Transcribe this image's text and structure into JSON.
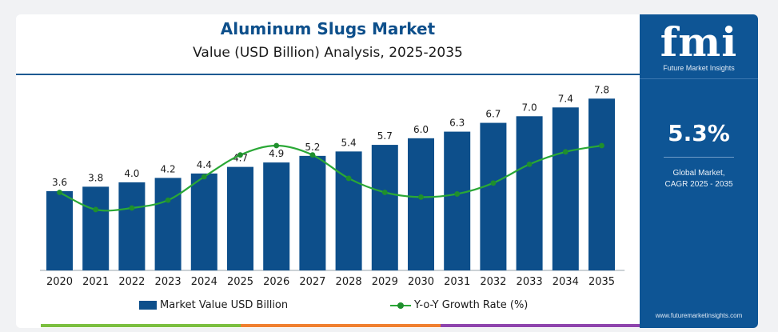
{
  "title": "Aluminum Slugs Market",
  "subtitle": "Value (USD Billion) Analysis, 2025-2035",
  "brand": {
    "logo": "fmi",
    "name": "Future Market Insights",
    "url": "www.futuremarketinsights.com",
    "color": "#0e5595"
  },
  "kpi": {
    "value": "5.3%",
    "label_line1": "Global Market,",
    "label_line2": "CAGR 2025 - 2035"
  },
  "legend": {
    "bar": "Market Value USD Billion",
    "line": "Y-o-Y Growth Rate (%)"
  },
  "colors": {
    "bar": "#0d4f8b",
    "line": "#2aa836",
    "marker": "#1f8f2d"
  },
  "strip_colors": [
    "#7bbf3f",
    "#f07f2f",
    "#8e44ad"
  ],
  "chart_data": {
    "type": "bar",
    "categories": [
      "2020",
      "2021",
      "2022",
      "2023",
      "2024",
      "2025",
      "2026",
      "2027",
      "2028",
      "2029",
      "2030",
      "2031",
      "2032",
      "2033",
      "2034",
      "2035"
    ],
    "series": [
      {
        "name": "Market Value USD Billion",
        "type": "bar",
        "values": [
          3.6,
          3.8,
          4.0,
          4.2,
          4.4,
          4.7,
          4.9,
          5.2,
          5.4,
          5.7,
          6.0,
          6.3,
          6.7,
          7.0,
          7.4,
          7.8
        ],
        "labels": [
          "3.6",
          "3.8",
          "4.0",
          "4.2",
          "4.4",
          "4.7",
          "4.9",
          "5.2",
          "5.4",
          "5.7",
          "6.0",
          "6.3",
          "6.7",
          "7.0",
          "7.4",
          "7.8"
        ]
      },
      {
        "name": "Y-o-Y Growth Rate (%)",
        "type": "line",
        "values": [
          5.0,
          3.9,
          4.0,
          4.5,
          6.0,
          7.4,
          8.0,
          7.4,
          5.9,
          5.0,
          4.7,
          4.9,
          5.6,
          6.8,
          7.6,
          8.0
        ]
      }
    ],
    "ylim": [
      0,
      8.5
    ],
    "y2lim": [
      0,
      12
    ],
    "grid": false,
    "legend_position": "bottom"
  }
}
